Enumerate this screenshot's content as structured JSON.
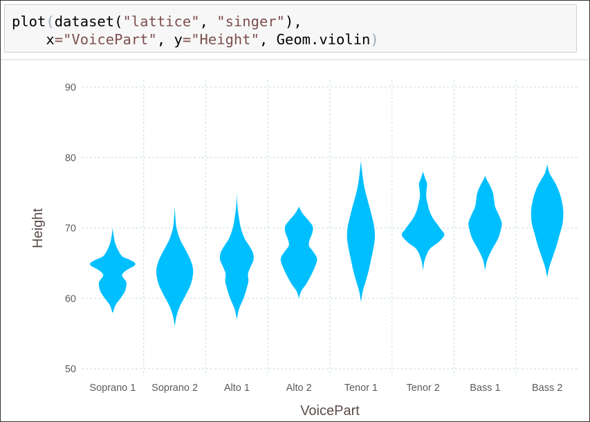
{
  "code": {
    "line1": {
      "fn": "plot",
      "open": "(",
      "fn2": "dataset(",
      "arg1": "\"lattice\"",
      "sep": ", ",
      "arg2": "\"singer\"",
      "close": "),"
    },
    "line2": {
      "indent": "    ",
      "k1": "x",
      "eq1": "=",
      "v1": "\"VoicePart\"",
      "sep1": ", ",
      "k2": "y",
      "eq2": "=",
      "v2": "\"Height\"",
      "sep2": ", ",
      "geom": "Geom.violin",
      "close": ")"
    }
  },
  "chart_data": {
    "type": "violin",
    "xlabel": "VoicePart",
    "ylabel": "Height",
    "ylim": [
      50,
      90
    ],
    "yticks": [
      "90",
      "80",
      "70",
      "60",
      "50"
    ],
    "grid": true,
    "color": "#00bfff",
    "gridColor": "#c8dede",
    "categories": [
      "Soprano 1",
      "Soprano 2",
      "Alto 1",
      "Alto 2",
      "Tenor 1",
      "Tenor 2",
      "Bass 1",
      "Bass 2"
    ],
    "series": [
      {
        "category": "Soprano 1",
        "y_range": [
          58,
          70
        ],
        "density": [
          [
            58,
            0.02
          ],
          [
            59,
            0.12
          ],
          [
            60,
            0.35
          ],
          [
            61,
            0.55
          ],
          [
            62,
            0.62
          ],
          [
            62.5,
            0.58
          ],
          [
            63.3,
            0.42
          ],
          [
            64,
            0.62
          ],
          [
            64.6,
            0.95
          ],
          [
            65,
            1.0
          ],
          [
            65.5,
            0.75
          ],
          [
            66,
            0.42
          ],
          [
            67,
            0.22
          ],
          [
            68,
            0.1
          ],
          [
            69,
            0.04
          ],
          [
            70,
            0.0
          ]
        ]
      },
      {
        "category": "Soprano 2",
        "y_range": [
          56,
          73
        ],
        "density": [
          [
            56,
            0.0
          ],
          [
            57.5,
            0.08
          ],
          [
            59,
            0.25
          ],
          [
            60.5,
            0.5
          ],
          [
            62,
            0.72
          ],
          [
            63.5,
            0.82
          ],
          [
            64.5,
            0.8
          ],
          [
            65.5,
            0.7
          ],
          [
            66.5,
            0.55
          ],
          [
            67.5,
            0.38
          ],
          [
            68.5,
            0.22
          ],
          [
            70,
            0.08
          ],
          [
            71.5,
            0.03
          ],
          [
            73,
            0.0
          ]
        ]
      },
      {
        "category": "Alto 1",
        "y_range": [
          57,
          75
        ],
        "density": [
          [
            57,
            0.0
          ],
          [
            58.5,
            0.1
          ],
          [
            60,
            0.3
          ],
          [
            61.5,
            0.45
          ],
          [
            62.5,
            0.52
          ],
          [
            63.5,
            0.5
          ],
          [
            64.5,
            0.62
          ],
          [
            65.5,
            0.75
          ],
          [
            66.5,
            0.72
          ],
          [
            67.5,
            0.55
          ],
          [
            68.5,
            0.35
          ],
          [
            70,
            0.18
          ],
          [
            72,
            0.07
          ],
          [
            73.5,
            0.02
          ],
          [
            75,
            0.0
          ]
        ]
      },
      {
        "category": "Alto 2",
        "y_range": [
          60,
          73
        ],
        "density": [
          [
            60,
            0.0
          ],
          [
            61,
            0.1
          ],
          [
            62,
            0.32
          ],
          [
            63.5,
            0.58
          ],
          [
            65,
            0.78
          ],
          [
            65.8,
            0.8
          ],
          [
            66.8,
            0.6
          ],
          [
            67.5,
            0.45
          ],
          [
            68.3,
            0.48
          ],
          [
            69.3,
            0.6
          ],
          [
            70.2,
            0.62
          ],
          [
            71,
            0.45
          ],
          [
            72,
            0.18
          ],
          [
            73,
            0.0
          ]
        ]
      },
      {
        "category": "Tenor 1",
        "y_range": [
          59.5,
          79.5
        ],
        "density": [
          [
            59.5,
            0.0
          ],
          [
            61,
            0.08
          ],
          [
            62.5,
            0.22
          ],
          [
            64,
            0.35
          ],
          [
            65.5,
            0.45
          ],
          [
            67,
            0.55
          ],
          [
            68.5,
            0.62
          ],
          [
            70,
            0.6
          ],
          [
            71.5,
            0.5
          ],
          [
            73,
            0.38
          ],
          [
            74.5,
            0.25
          ],
          [
            76,
            0.14
          ],
          [
            77.5,
            0.07
          ],
          [
            79.5,
            0.0
          ]
        ]
      },
      {
        "category": "Tenor 2",
        "y_range": [
          64,
          78
        ],
        "density": [
          [
            64,
            0.0
          ],
          [
            65.5,
            0.08
          ],
          [
            67,
            0.3
          ],
          [
            68,
            0.7
          ],
          [
            69,
            0.95
          ],
          [
            69.8,
            0.8
          ],
          [
            70.6,
            0.62
          ],
          [
            71.5,
            0.42
          ],
          [
            72.5,
            0.28
          ],
          [
            73.5,
            0.2
          ],
          [
            74.5,
            0.14
          ],
          [
            75.5,
            0.16
          ],
          [
            76.3,
            0.18
          ],
          [
            77,
            0.1
          ],
          [
            78,
            0.0
          ]
        ]
      },
      {
        "category": "Bass 1",
        "y_range": [
          64,
          77.5
        ],
        "density": [
          [
            64,
            0.0
          ],
          [
            65.5,
            0.1
          ],
          [
            67,
            0.32
          ],
          [
            68.5,
            0.58
          ],
          [
            70,
            0.72
          ],
          [
            70.8,
            0.74
          ],
          [
            71.8,
            0.62
          ],
          [
            73,
            0.45
          ],
          [
            74,
            0.4
          ],
          [
            75,
            0.35
          ],
          [
            76,
            0.22
          ],
          [
            77,
            0.05
          ],
          [
            77.5,
            0.0
          ]
        ]
      },
      {
        "category": "Bass 2",
        "y_range": [
          63,
          79
        ],
        "density": [
          [
            63,
            0.0
          ],
          [
            64.5,
            0.1
          ],
          [
            66,
            0.26
          ],
          [
            67.5,
            0.42
          ],
          [
            69,
            0.55
          ],
          [
            70.5,
            0.68
          ],
          [
            71.8,
            0.72
          ],
          [
            73,
            0.7
          ],
          [
            74.5,
            0.6
          ],
          [
            75.8,
            0.45
          ],
          [
            76.8,
            0.28
          ],
          [
            77.8,
            0.1
          ],
          [
            79,
            0.0
          ]
        ]
      }
    ]
  }
}
